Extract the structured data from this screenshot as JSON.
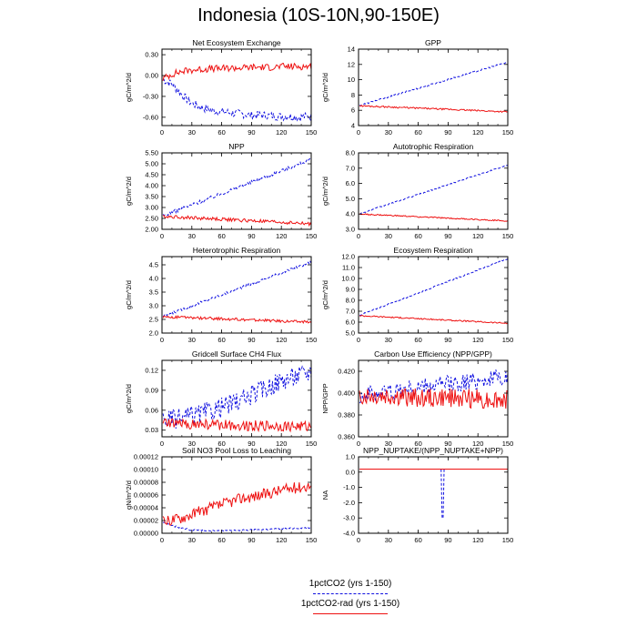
{
  "title": "Indonesia (10S-10N,90-150E)",
  "colors": {
    "co2": "#1010e0",
    "rad": "#ee1111",
    "axis": "#000000"
  },
  "legend": [
    {
      "label": "1pctCO2 (yrs 1-150)",
      "color": "#1010e0",
      "style": "dashed"
    },
    {
      "label": "1pctCO2-rad (yrs 1-150)",
      "color": "#ee1111",
      "style": "solid"
    }
  ],
  "chart_data": [
    {
      "type": "line",
      "title": "Net Ecosystem Exchange",
      "xlabel": "",
      "ylabel": "gC/m^2/d",
      "xlim": [
        0,
        150
      ],
      "xticks": [
        0,
        30,
        60,
        90,
        120,
        150
      ],
      "ylim": [
        -0.72,
        0.38
      ],
      "yticks": [
        0.3,
        0.0,
        -0.3,
        -0.6
      ],
      "yticklabels": [
        "0.30",
        "0.00",
        "-0.30",
        "-0.60"
      ],
      "series": [
        {
          "style": "dashed",
          "color": "#1010e0",
          "x": [
            0,
            10,
            20,
            30,
            40,
            50,
            60,
            70,
            80,
            90,
            100,
            110,
            120,
            130,
            140,
            150
          ],
          "y": [
            -0.05,
            -0.12,
            -0.28,
            -0.4,
            -0.46,
            -0.5,
            -0.52,
            -0.54,
            -0.55,
            -0.57,
            -0.57,
            -0.58,
            -0.59,
            -0.59,
            -0.6,
            -0.58
          ],
          "noise": 0.06
        },
        {
          "style": "solid",
          "color": "#ee1111",
          "x": [
            0,
            10,
            20,
            30,
            40,
            50,
            60,
            70,
            80,
            90,
            100,
            110,
            120,
            130,
            140,
            150
          ],
          "y": [
            -0.05,
            0.02,
            0.06,
            0.08,
            0.09,
            0.1,
            0.1,
            0.11,
            0.11,
            0.12,
            0.12,
            0.12,
            0.13,
            0.13,
            0.13,
            0.13
          ],
          "noise": 0.05
        }
      ]
    },
    {
      "type": "line",
      "title": "GPP",
      "xlabel": "",
      "ylabel": "gC/m^2/d",
      "xlim": [
        0,
        150
      ],
      "xticks": [
        0,
        30,
        60,
        90,
        120,
        150
      ],
      "ylim": [
        4,
        14
      ],
      "yticks": [
        4,
        6,
        8,
        10,
        12,
        14
      ],
      "yticklabels": [
        "4",
        "6",
        "8",
        "10",
        "12",
        "14"
      ],
      "series": [
        {
          "style": "dashed",
          "color": "#1010e0",
          "x": [
            0,
            150
          ],
          "y": [
            6.6,
            12.3
          ],
          "noise": 0.1
        },
        {
          "style": "solid",
          "color": "#ee1111",
          "x": [
            0,
            150
          ],
          "y": [
            6.6,
            5.8
          ],
          "noise": 0.1
        }
      ]
    },
    {
      "type": "line",
      "title": "NPP",
      "xlabel": "",
      "ylabel": "gC/m^2/d",
      "xlim": [
        0,
        150
      ],
      "xticks": [
        0,
        30,
        60,
        90,
        120,
        150
      ],
      "ylim": [
        2.0,
        5.5
      ],
      "yticks": [
        2.0,
        2.5,
        3.0,
        3.5,
        4.0,
        4.5,
        5.0,
        5.5
      ],
      "yticklabels": [
        "2.00",
        "2.50",
        "3.00",
        "3.50",
        "4.00",
        "4.50",
        "5.00",
        "5.50"
      ],
      "series": [
        {
          "style": "dashed",
          "color": "#1010e0",
          "x": [
            0,
            150
          ],
          "y": [
            2.6,
            5.2
          ],
          "noise": 0.08
        },
        {
          "style": "solid",
          "color": "#ee1111",
          "x": [
            0,
            150
          ],
          "y": [
            2.6,
            2.25
          ],
          "noise": 0.08
        }
      ]
    },
    {
      "type": "line",
      "title": "Autotrophic Respiration",
      "xlabel": "",
      "ylabel": "gC/m^2/d",
      "xlim": [
        0,
        150
      ],
      "xticks": [
        0,
        30,
        60,
        90,
        120,
        150
      ],
      "ylim": [
        3.0,
        8.0
      ],
      "yticks": [
        3.0,
        4.0,
        5.0,
        6.0,
        7.0,
        8.0
      ],
      "yticklabels": [
        "3.0",
        "4.0",
        "5.0",
        "6.0",
        "7.0",
        "8.0"
      ],
      "series": [
        {
          "style": "dashed",
          "color": "#1010e0",
          "x": [
            0,
            150
          ],
          "y": [
            4.0,
            7.2
          ],
          "noise": 0.04
        },
        {
          "style": "solid",
          "color": "#ee1111",
          "x": [
            0,
            150
          ],
          "y": [
            4.0,
            3.55
          ],
          "noise": 0.04
        }
      ]
    },
    {
      "type": "line",
      "title": "Heterotrophic Respiration",
      "xlabel": "",
      "ylabel": "gC/m^2/d",
      "xlim": [
        0,
        150
      ],
      "xticks": [
        0,
        30,
        60,
        90,
        120,
        150
      ],
      "ylim": [
        2.0,
        4.8
      ],
      "yticks": [
        2.0,
        2.5,
        3.0,
        3.5,
        4.0,
        4.5
      ],
      "yticklabels": [
        "2.0",
        "2.5",
        "3.0",
        "3.5",
        "4.0",
        "4.5"
      ],
      "series": [
        {
          "style": "dashed",
          "color": "#1010e0",
          "x": [
            0,
            150
          ],
          "y": [
            2.6,
            4.6
          ],
          "noise": 0.05
        },
        {
          "style": "solid",
          "color": "#ee1111",
          "x": [
            0,
            150
          ],
          "y": [
            2.6,
            2.4
          ],
          "noise": 0.05
        }
      ]
    },
    {
      "type": "line",
      "title": "Ecosystem Respiration",
      "xlabel": "",
      "ylabel": "gC/m^2/d",
      "xlim": [
        0,
        150
      ],
      "xticks": [
        0,
        30,
        60,
        90,
        120,
        150
      ],
      "ylim": [
        5.0,
        12.0
      ],
      "yticks": [
        5.0,
        6.0,
        7.0,
        8.0,
        9.0,
        10.0,
        11.0,
        12.0
      ],
      "yticklabels": [
        "5.0",
        "6.0",
        "7.0",
        "8.0",
        "9.0",
        "10.0",
        "11.0",
        "12.0"
      ],
      "series": [
        {
          "style": "dashed",
          "color": "#1010e0",
          "x": [
            0,
            150
          ],
          "y": [
            6.6,
            11.8
          ],
          "noise": 0.06
        },
        {
          "style": "solid",
          "color": "#ee1111",
          "x": [
            0,
            150
          ],
          "y": [
            6.6,
            5.9
          ],
          "noise": 0.06
        }
      ]
    },
    {
      "type": "line",
      "title": "Gridcell Surface CH4 Flux",
      "xlabel": "",
      "ylabel": "gC/m^2/d",
      "xlim": [
        0,
        150
      ],
      "xticks": [
        0,
        30,
        60,
        90,
        120,
        150
      ],
      "ylim": [
        0.02,
        0.135
      ],
      "yticks": [
        0.03,
        0.06,
        0.09,
        0.12
      ],
      "yticklabels": [
        "0.03",
        "0.06",
        "0.09",
        "0.12"
      ],
      "series": [
        {
          "style": "dashed",
          "color": "#1010e0",
          "x": [
            0,
            20,
            40,
            60,
            80,
            100,
            120,
            150
          ],
          "y": [
            0.045,
            0.048,
            0.055,
            0.065,
            0.075,
            0.09,
            0.105,
            0.118
          ],
          "noise": 0.015
        },
        {
          "style": "solid",
          "color": "#ee1111",
          "x": [
            0,
            150
          ],
          "y": [
            0.04,
            0.035
          ],
          "noise": 0.008
        }
      ]
    },
    {
      "type": "line",
      "title": "Carbon Use Efficiency (NPP/GPP)",
      "xlabel": "",
      "ylabel": "NPP/GPP",
      "xlim": [
        0,
        150
      ],
      "xticks": [
        0,
        30,
        60,
        90,
        120,
        150
      ],
      "ylim": [
        0.36,
        0.43
      ],
      "yticks": [
        0.36,
        0.38,
        0.4,
        0.42
      ],
      "yticklabels": [
        "0.360",
        "0.380",
        "0.400",
        "0.420"
      ],
      "series": [
        {
          "style": "dashed",
          "color": "#1010e0",
          "x": [
            0,
            150
          ],
          "y": [
            0.398,
            0.415
          ],
          "noise": 0.008
        },
        {
          "style": "solid",
          "color": "#ee1111",
          "x": [
            0,
            150
          ],
          "y": [
            0.398,
            0.394
          ],
          "noise": 0.009
        }
      ]
    },
    {
      "type": "line",
      "title": "Soil NO3 Pool Loss to Leaching",
      "xlabel": "",
      "ylabel": "gN/m^2/d",
      "xlim": [
        0,
        150
      ],
      "xticks": [
        0,
        30,
        60,
        90,
        120,
        150
      ],
      "ylim": [
        0,
        0.00012
      ],
      "yticks": [
        0,
        2e-05,
        4e-05,
        6e-05,
        8e-05,
        0.0001,
        0.00012
      ],
      "yticklabels": [
        "0.00000",
        "0.00002",
        "0.00004",
        "0.00006",
        "0.00008",
        "0.00010",
        "0.00012"
      ],
      "series": [
        {
          "style": "dashed",
          "color": "#1010e0",
          "x": [
            0,
            10,
            20,
            30,
            60,
            90,
            120,
            150
          ],
          "y": [
            1.8e-05,
            1.2e-05,
            8e-06,
            5e-06,
            4e-06,
            5e-06,
            7e-06,
            9e-06
          ],
          "noise": 1.2e-06
        },
        {
          "style": "solid",
          "color": "#ee1111",
          "x": [
            0,
            20,
            40,
            60,
            80,
            100,
            120,
            150
          ],
          "y": [
            1.8e-05,
            2.5e-05,
            3.5e-05,
            4.5e-05,
            5.5e-05,
            6e-05,
            6.8e-05,
            7.5e-05
          ],
          "noise": 9e-06
        }
      ]
    },
    {
      "type": "line",
      "title": "NPP_NUPTAKE/(NPP_NUPTAKE+NPP)",
      "xlabel": "",
      "ylabel": "NA",
      "xlim": [
        0,
        150
      ],
      "xticks": [
        0,
        30,
        60,
        90,
        120,
        150
      ],
      "ylim": [
        -4.0,
        1.0
      ],
      "yticks": [
        -4.0,
        -3.0,
        -2.0,
        -1.0,
        0.0,
        1.0
      ],
      "yticklabels": [
        "-4.0",
        "-3.0",
        "-2.0",
        "-1.0",
        "0.0",
        "1.0"
      ],
      "series": [
        {
          "style": "dashed",
          "color": "#1010e0",
          "x": [
            0,
            83,
            84,
            85,
            86,
            150
          ],
          "y": [
            0.2,
            0.2,
            -3.0,
            -3.0,
            0.2,
            0.2
          ],
          "noise": 0
        },
        {
          "style": "solid",
          "color": "#ee1111",
          "x": [
            0,
            150
          ],
          "y": [
            0.2,
            0.2
          ],
          "noise": 0
        }
      ]
    }
  ]
}
